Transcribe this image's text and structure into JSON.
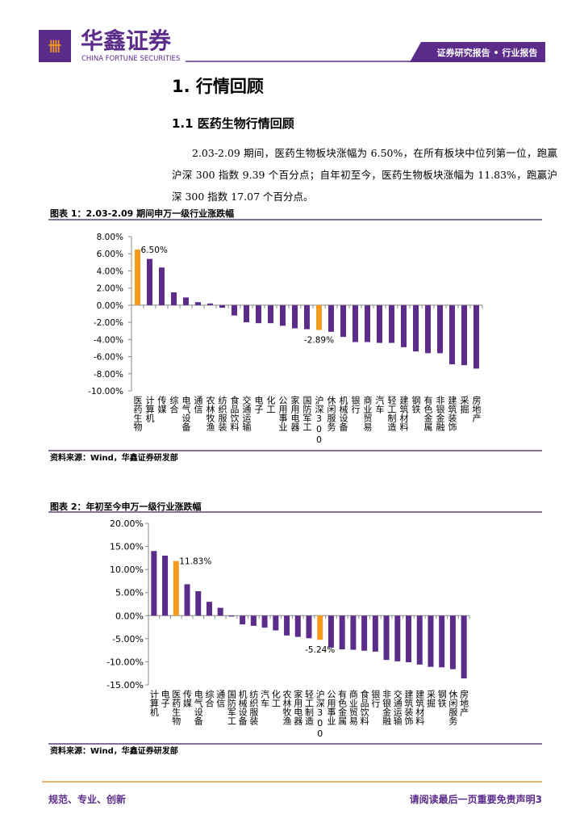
{
  "header": {
    "brand": "华鑫证券",
    "brand_en": "CHINA FORTUNE SECURITIES",
    "report_type": "证券研究报告 • 行业报告"
  },
  "section_title": "1. 行情回顾",
  "subsection_title": "1.1 医药生物行情回顾",
  "paragraph": "2.03-2.09 期间，医药生物板块涨幅为 6.50%，在所有板块中位列第一位，跑赢沪深 300 指数 9.39 个百分点；自年初至今，医药生物板块涨幅为 11.83%，跑赢沪深 300 指数 17.07 个百分点。",
  "chart_data": [
    {
      "type": "bar",
      "title": "图表 1：2.03-2.09 期间申万一级行业涨跌幅",
      "source": "资料来源：Wind，华鑫证券研发部",
      "categories": [
        "医药生物",
        "计算机",
        "传媒",
        "综合",
        "电气设备",
        "通信",
        "农林牧渔",
        "纺织服装",
        "食品饮料",
        "交通运输",
        "电子",
        "化工",
        "公用事业",
        "家用电器",
        "国防军工",
        "沪深300",
        "休闲服务",
        "机械设备",
        "银行",
        "商业贸易",
        "汽车",
        "轻工制造",
        "建筑材料",
        "钢铁",
        "有色金属",
        "非银金融",
        "建筑装饰",
        "采掘",
        "房地产"
      ],
      "values": [
        6.5,
        5.4,
        4.4,
        1.5,
        0.9,
        0.35,
        0.2,
        -0.3,
        -1.2,
        -2.0,
        -2.1,
        -2.1,
        -2.4,
        -2.7,
        -2.8,
        -2.89,
        -3.1,
        -3.7,
        -4.3,
        -4.3,
        -4.4,
        -4.4,
        -4.9,
        -5.4,
        -5.6,
        -5.6,
        -6.9,
        -7.0,
        -7.4
      ],
      "value_labels": [
        "6.50%",
        null,
        null,
        null,
        null,
        null,
        null,
        null,
        null,
        null,
        null,
        null,
        null,
        null,
        null,
        "-2.89%",
        null,
        null,
        null,
        null,
        null,
        null,
        null,
        null,
        null,
        null,
        null,
        null,
        null
      ],
      "colors": [
        "#f39a1f",
        "#5b2c8a",
        "#5b2c8a",
        "#5b2c8a",
        "#5b2c8a",
        "#5b2c8a",
        "#5b2c8a",
        "#5b2c8a",
        "#5b2c8a",
        "#5b2c8a",
        "#5b2c8a",
        "#5b2c8a",
        "#5b2c8a",
        "#5b2c8a",
        "#5b2c8a",
        "#f39a1f",
        "#5b2c8a",
        "#5b2c8a",
        "#5b2c8a",
        "#5b2c8a",
        "#5b2c8a",
        "#5b2c8a",
        "#5b2c8a",
        "#5b2c8a",
        "#5b2c8a",
        "#5b2c8a",
        "#5b2c8a",
        "#5b2c8a",
        "#5b2c8a"
      ],
      "ylim": [
        -10,
        8
      ],
      "yticks": [
        {
          "value": 8,
          "label": "8.00%"
        },
        {
          "value": 6,
          "label": "6.00%"
        },
        {
          "value": 4,
          "label": "4.00%"
        },
        {
          "value": 2,
          "label": "2.00%"
        },
        {
          "value": 0,
          "label": "0.00%"
        },
        {
          "value": -2,
          "label": "-2.00%"
        },
        {
          "value": -4,
          "label": "-4.00%"
        },
        {
          "value": -6,
          "label": "-6.00%"
        },
        {
          "value": -8,
          "label": "-8.00%"
        },
        {
          "value": -10,
          "label": "-10.00%"
        }
      ]
    },
    {
      "type": "bar",
      "title": "图表 2：年初至今申万一级行业涨跌幅",
      "source": "资料来源：Wind，华鑫证券研发部",
      "categories": [
        "计算机",
        "电子",
        "医药生物",
        "传媒",
        "电气设备",
        "综合",
        "通信",
        "国防军工",
        "机械设备",
        "纺织服装",
        "汽车",
        "化工",
        "农林牧渔",
        "家用电器",
        "轻工制造",
        "沪深300",
        "公用事业",
        "有色金属",
        "商业贸易",
        "食品饮料",
        "银行",
        "非银金融",
        "交通运输",
        "建筑装饰",
        "建筑材料",
        "采掘",
        "钢铁",
        "休闲服务",
        "房地产"
      ],
      "values": [
        14.0,
        13.0,
        11.83,
        6.8,
        5.3,
        3.0,
        1.7,
        -0.2,
        -1.9,
        -2.2,
        -2.6,
        -3.2,
        -4.3,
        -4.6,
        -4.9,
        -5.24,
        -6.9,
        -7.3,
        -7.4,
        -7.6,
        -7.8,
        -9.6,
        -9.9,
        -10.1,
        -10.6,
        -11.1,
        -11.2,
        -11.6,
        -13.6
      ],
      "value_labels": [
        null,
        null,
        "11.83%",
        null,
        null,
        null,
        null,
        null,
        null,
        null,
        null,
        null,
        null,
        null,
        null,
        "-5.24%",
        null,
        null,
        null,
        null,
        null,
        null,
        null,
        null,
        null,
        null,
        null,
        null,
        null
      ],
      "colors": [
        "#5b2c8a",
        "#5b2c8a",
        "#f39a1f",
        "#5b2c8a",
        "#5b2c8a",
        "#5b2c8a",
        "#5b2c8a",
        "#5b2c8a",
        "#5b2c8a",
        "#5b2c8a",
        "#5b2c8a",
        "#5b2c8a",
        "#5b2c8a",
        "#5b2c8a",
        "#5b2c8a",
        "#f39a1f",
        "#5b2c8a",
        "#5b2c8a",
        "#5b2c8a",
        "#5b2c8a",
        "#5b2c8a",
        "#5b2c8a",
        "#5b2c8a",
        "#5b2c8a",
        "#5b2c8a",
        "#5b2c8a",
        "#5b2c8a",
        "#5b2c8a",
        "#5b2c8a"
      ],
      "ylim": [
        -15,
        20
      ],
      "yticks": [
        {
          "value": 20,
          "label": "20.00%"
        },
        {
          "value": 15,
          "label": "15.00%"
        },
        {
          "value": 10,
          "label": "10.00%"
        },
        {
          "value": 5,
          "label": "5.00%"
        },
        {
          "value": 0,
          "label": "0.00%"
        },
        {
          "value": -5,
          "label": "-5.00%"
        },
        {
          "value": -10,
          "label": "-10.00%"
        },
        {
          "value": -15,
          "label": "-15.00%"
        }
      ]
    }
  ],
  "footer": {
    "slogan": "规范、专业、创新",
    "disclaimer": "请阅读最后一页重要免责声明3"
  }
}
